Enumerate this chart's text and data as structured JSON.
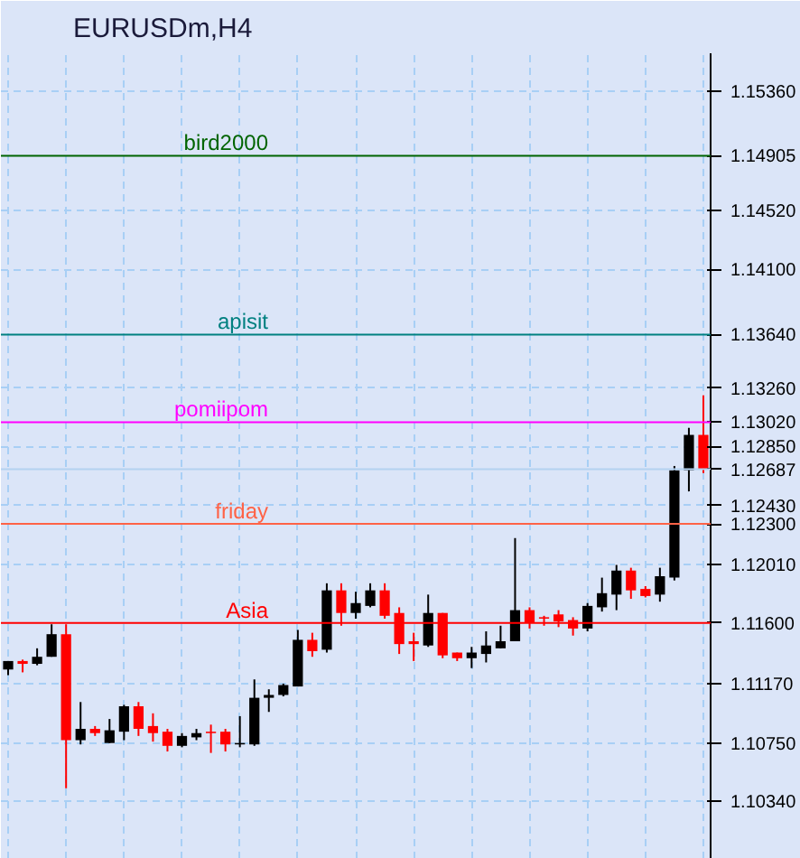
{
  "chart_data": {
    "type": "candlestick",
    "title": "EURUSDm,H4",
    "categories": [
      null,
      null,
      null,
      null,
      null,
      null,
      null,
      null,
      null,
      null,
      null,
      null,
      null,
      null,
      null,
      null,
      null,
      null,
      null,
      null,
      null,
      null,
      null,
      null,
      null,
      null,
      null,
      null,
      null,
      null,
      null,
      null,
      null,
      null,
      null,
      null,
      null,
      null,
      null,
      null,
      null,
      null,
      null,
      null,
      null,
      null,
      null,
      null,
      null
    ],
    "ohlc": [
      [
        1.1127,
        1.1133,
        1.1123,
        1.1133
      ],
      [
        1.1133,
        1.1134,
        1.1125,
        1.1131
      ],
      [
        1.1131,
        1.1142,
        1.113,
        1.1136
      ],
      [
        1.1136,
        1.1159,
        1.1136,
        1.1152
      ],
      [
        1.1152,
        1.1159,
        1.1043,
        1.1077
      ],
      [
        1.1077,
        1.1104,
        1.1074,
        1.1085
      ],
      [
        1.1085,
        1.1087,
        1.108,
        1.1082
      ],
      [
        1.1075,
        1.1092,
        1.1075,
        1.1084
      ],
      [
        1.1083,
        1.1102,
        1.1077,
        1.1101
      ],
      [
        1.1101,
        1.1104,
        1.108,
        1.1085
      ],
      [
        1.1087,
        1.1096,
        1.1076,
        1.1082
      ],
      [
        1.1083,
        1.1085,
        1.1069,
        1.1073
      ],
      [
        1.1073,
        1.1082,
        1.1072,
        1.108
      ],
      [
        1.1079,
        1.1085,
        1.1077,
        1.1082
      ],
      [
        1.1083,
        1.1088,
        1.1068,
        1.1082
      ],
      [
        1.1083,
        1.1085,
        1.1069,
        1.1074
      ],
      [
        1.1074,
        1.1094,
        1.1072,
        1.1075
      ],
      [
        1.1074,
        1.112,
        1.1073,
        1.1107
      ],
      [
        1.1107,
        1.1113,
        1.1097,
        1.1109
      ],
      [
        1.1109,
        1.1117,
        1.1108,
        1.1116
      ],
      [
        1.1115,
        1.1155,
        1.1115,
        1.1148
      ],
      [
        1.1148,
        1.1153,
        1.1136,
        1.114
      ],
      [
        1.1141,
        1.1188,
        1.1139,
        1.1183
      ],
      [
        1.1183,
        1.1188,
        1.1158,
        1.1167
      ],
      [
        1.1167,
        1.1182,
        1.1163,
        1.1174
      ],
      [
        1.1172,
        1.1188,
        1.1171,
        1.1183
      ],
      [
        1.1183,
        1.1188,
        1.1163,
        1.1165
      ],
      [
        1.1167,
        1.1171,
        1.1138,
        1.1145
      ],
      [
        1.1147,
        1.1153,
        1.1133,
        1.1145
      ],
      [
        1.1144,
        1.118,
        1.1143,
        1.1167
      ],
      [
        1.1167,
        1.1167,
        1.1135,
        1.1137
      ],
      [
        1.1139,
        1.1139,
        1.1133,
        1.1135
      ],
      [
        1.1135,
        1.1143,
        1.1128,
        1.1139
      ],
      [
        1.1138,
        1.1154,
        1.1132,
        1.1144
      ],
      [
        1.1142,
        1.1158,
        1.1142,
        1.1147
      ],
      [
        1.1147,
        1.122,
        1.1147,
        1.1169
      ],
      [
        1.1169,
        1.1171,
        1.1156,
        1.116
      ],
      [
        1.1164,
        1.1165,
        1.1158,
        1.1163
      ],
      [
        1.1166,
        1.1169,
        1.1157,
        1.1161
      ],
      [
        1.1162,
        1.1164,
        1.1151,
        1.1156
      ],
      [
        1.1156,
        1.1174,
        1.1154,
        1.1172
      ],
      [
        1.1171,
        1.1192,
        1.1168,
        1.1181
      ],
      [
        1.118,
        1.1201,
        1.1169,
        1.1197
      ],
      [
        1.1197,
        1.1199,
        1.1177,
        1.1183
      ],
      [
        1.1184,
        1.1186,
        1.1178,
        1.1179
      ],
      [
        1.118,
        1.1199,
        1.1175,
        1.1193
      ],
      [
        1.1192,
        1.1271,
        1.119,
        1.1268
      ],
      [
        1.1268,
        1.1298,
        1.1253,
        1.1293
      ],
      [
        1.1293,
        1.1321,
        1.1266,
        1.1269
      ]
    ],
    "ylim": [
      1.0993,
      1.1563
    ],
    "yticks": [
      {
        "value": 1.1536,
        "label": "1.15360"
      },
      {
        "value": 1.1452,
        "label": "1.14520"
      },
      {
        "value": 1.141,
        "label": "1.14100"
      },
      {
        "value": 1.1326,
        "label": "1.13260"
      },
      {
        "value": 1.1285,
        "label": "1.12850"
      },
      {
        "value": 1.1243,
        "label": "1.12430"
      },
      {
        "value": 1.1201,
        "label": "1.12010"
      },
      {
        "value": 1.1117,
        "label": "1.11170"
      },
      {
        "value": 1.1075,
        "label": "1.10750"
      },
      {
        "value": 1.1034,
        "label": "1.10340"
      },
      {
        "value": 1.14905,
        "label": "1.14905"
      },
      {
        "value": 1.1364,
        "label": "1.13640"
      },
      {
        "value": 1.1302,
        "label": "1.13020"
      },
      {
        "value": 1.12687,
        "label": "1.12687"
      },
      {
        "value": 1.123,
        "label": "1.12300"
      },
      {
        "value": 1.116,
        "label": "1.11600"
      }
    ],
    "grid": true,
    "tick_labels": "y",
    "ref_lines": [
      {
        "axis": "y",
        "value": 1.14905,
        "label": "bird2000",
        "color": "#006400"
      },
      {
        "axis": "y",
        "value": 1.1364,
        "label": "apisit",
        "color": "#008080"
      },
      {
        "axis": "y",
        "value": 1.1302,
        "label": "pomiipom",
        "color": "#ff00ff"
      },
      {
        "axis": "y",
        "value": 1.123,
        "label": "friday",
        "color": "#ff6347"
      },
      {
        "axis": "y",
        "value": 1.116,
        "label": "Asia",
        "color": "#ff0000"
      },
      {
        "axis": "y",
        "value": 1.12687,
        "label": null,
        "color": "#b4d2f0"
      }
    ]
  }
}
